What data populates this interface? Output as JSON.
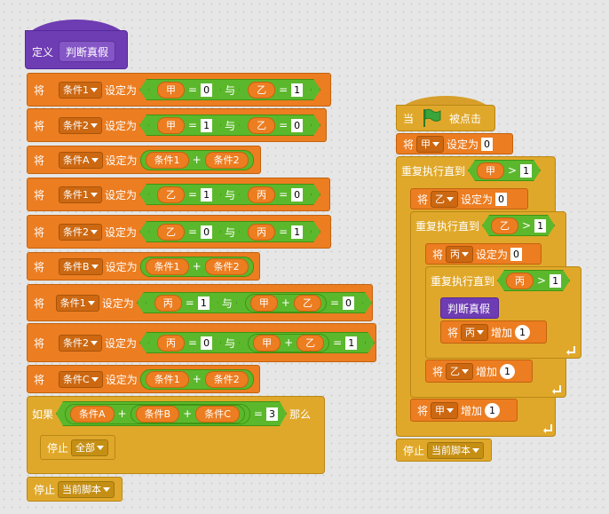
{
  "definition": {
    "define_label": "定义",
    "proc_name": "判断真假"
  },
  "labels": {
    "set_prefix": "将",
    "set_to": "设定为",
    "and": "与",
    "if": "如果",
    "then": "那么",
    "stop": "停止",
    "when": "当",
    "clicked": "被点击",
    "repeat_until": "重复执行直到",
    "change": "增加"
  },
  "vars": {
    "jia": "甲",
    "yi": "乙",
    "bing": "丙",
    "c1": "条件1",
    "c2": "条件2",
    "ca": "条件A",
    "cb": "条件B",
    "cc": "条件C"
  },
  "ops": {
    "eq": "=",
    "plus": "+",
    "gt": ">"
  },
  "nums": {
    "zero": "0",
    "one": "1",
    "three": "3"
  },
  "stop_options": {
    "all": "全部",
    "this_script": "当前脚本"
  },
  "colors": {
    "motion_orange": "#ec7d21",
    "control_gold": "#e0a82a",
    "operator_green": "#5bb82c",
    "custom_purple": "#6e3cb3",
    "flag_green": "#3aa53a"
  },
  "icons": {
    "flag": "green-flag-icon",
    "loop_arrow": "loop-arrow-icon",
    "caret": "dropdown-caret-icon"
  }
}
